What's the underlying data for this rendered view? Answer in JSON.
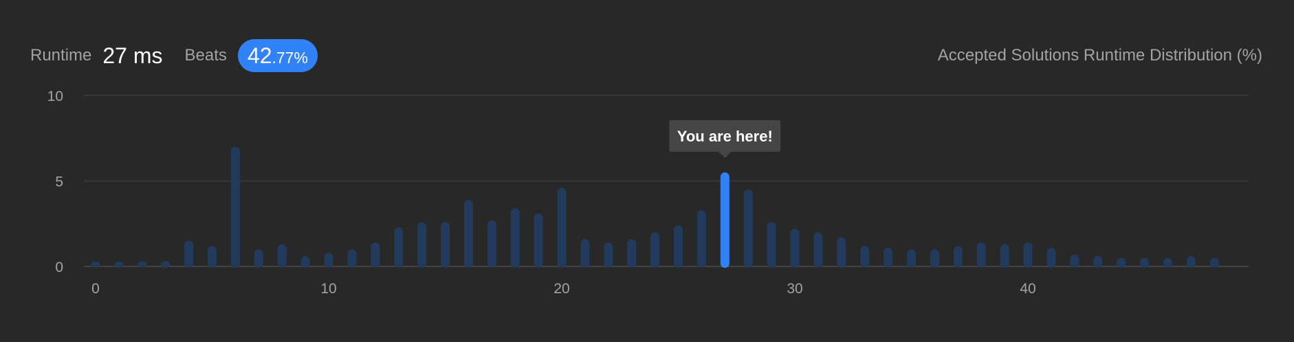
{
  "runtime": {
    "label": "Runtime",
    "value": "27 ms"
  },
  "beats": {
    "label": "Beats",
    "integer": "42",
    "fraction": ".77%"
  },
  "colors": {
    "background": "#282828",
    "bar": "#223a5c",
    "highlight": "#3182f6",
    "badge": "#3182f6"
  },
  "chart_data": {
    "type": "bar",
    "title": "Accepted Solutions Runtime Distribution (%)",
    "xlabel": "",
    "ylabel": "",
    "xlim": [
      0,
      49
    ],
    "ylim": [
      0,
      10
    ],
    "xticks": [
      0,
      10,
      20,
      30,
      40
    ],
    "yticks": [
      0,
      5,
      10
    ],
    "grid": true,
    "x": [
      0,
      1,
      2,
      3,
      4,
      5,
      6,
      7,
      8,
      9,
      10,
      11,
      12,
      13,
      14,
      15,
      16,
      17,
      18,
      19,
      20,
      21,
      22,
      23,
      24,
      25,
      26,
      27,
      28,
      29,
      30,
      31,
      32,
      33,
      34,
      35,
      36,
      37,
      38,
      39,
      40,
      41,
      42,
      43,
      44,
      45,
      46,
      47,
      48
    ],
    "values": [
      0.3,
      0.3,
      0.3,
      0.3,
      1.5,
      1.2,
      7.0,
      1.0,
      1.3,
      0.6,
      0.8,
      1.0,
      1.4,
      2.3,
      2.6,
      2.6,
      3.9,
      2.7,
      3.4,
      3.1,
      4.6,
      1.6,
      1.4,
      1.6,
      2.0,
      2.4,
      3.3,
      5.5,
      4.5,
      2.6,
      2.2,
      2.0,
      1.7,
      1.2,
      1.1,
      1.0,
      1.0,
      1.2,
      1.4,
      1.3,
      1.4,
      1.1,
      0.7,
      0.6,
      0.5,
      0.5,
      0.5,
      0.6,
      0.5
    ],
    "highlight_x": 27,
    "tooltip": "You are here!"
  }
}
